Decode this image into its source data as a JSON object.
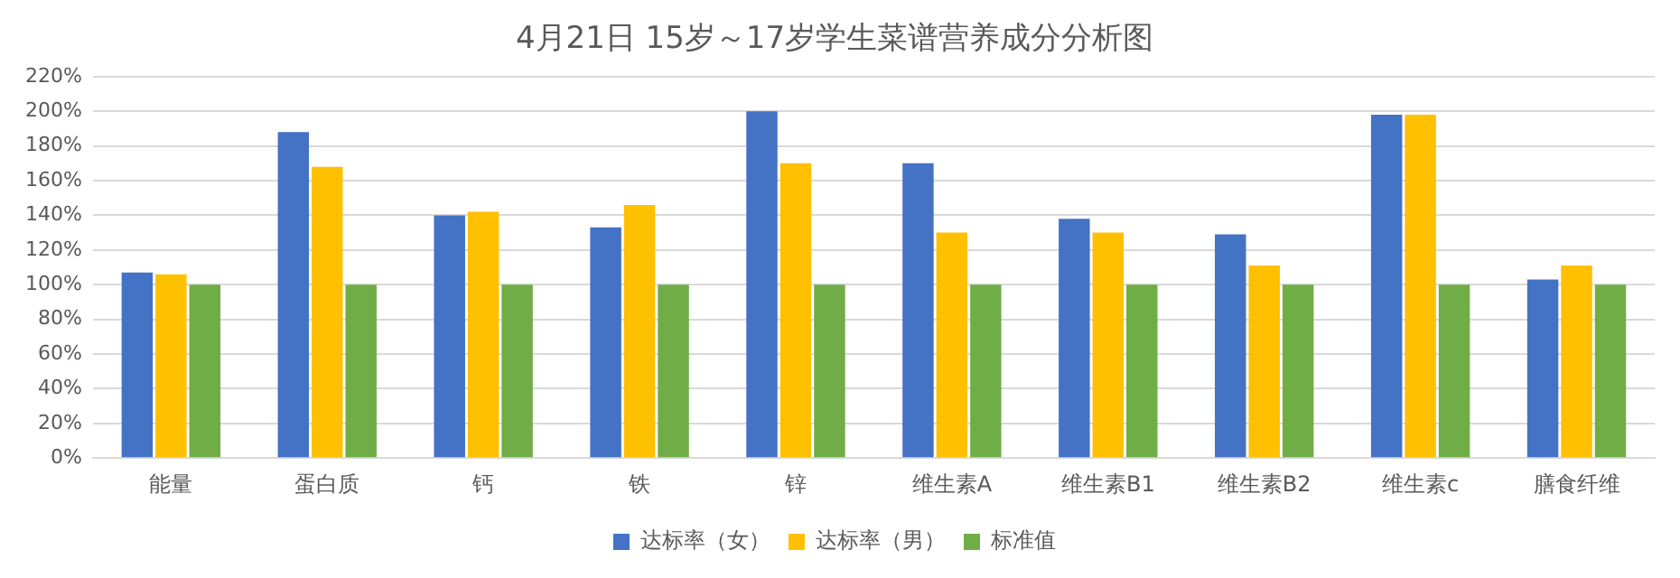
{
  "chart_data": {
    "type": "bar",
    "title": "4月21日 15岁～17岁学生菜谱营养成分分析图",
    "categories": [
      "能量",
      "蛋白质",
      "钙",
      "铁",
      "锌",
      "维生素A",
      "维生素B1",
      "维生素B2",
      "维生素c",
      "膳食纤维"
    ],
    "series": [
      {
        "name": "达标率（女）",
        "color": "#4472c4",
        "values": [
          107,
          188,
          140,
          133,
          200,
          170,
          138,
          129,
          198,
          103
        ]
      },
      {
        "name": "达标率（男）",
        "color": "#ffc000",
        "values": [
          106,
          168,
          142,
          146,
          170,
          130,
          130,
          111,
          198,
          111
        ]
      },
      {
        "name": "标准值",
        "color": "#70ad47",
        "values": [
          100,
          100,
          100,
          100,
          100,
          100,
          100,
          100,
          100,
          100
        ]
      }
    ],
    "ylim": [
      0,
      220
    ],
    "yticks": [
      {
        "value": 0,
        "label": "0%"
      },
      {
        "value": 20,
        "label": "20%"
      },
      {
        "value": 40,
        "label": "40%"
      },
      {
        "value": 60,
        "label": "60%"
      },
      {
        "value": 80,
        "label": "80%"
      },
      {
        "value": 100,
        "label": "100%"
      },
      {
        "value": 120,
        "label": "120%"
      },
      {
        "value": 140,
        "label": "140%"
      },
      {
        "value": 160,
        "label": "160%"
      },
      {
        "value": 180,
        "label": "180%"
      },
      {
        "value": 200,
        "label": "200%"
      },
      {
        "value": 220,
        "label": "220%"
      }
    ],
    "grid": "y",
    "legend": "bottom"
  }
}
